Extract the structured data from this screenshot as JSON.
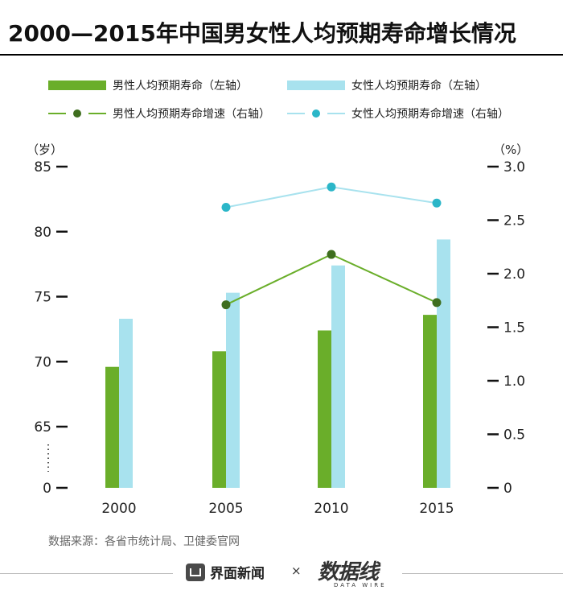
{
  "title": "2000—2015年中国男女性人均预期寿命增长情况",
  "legend": {
    "male_bar": "男性人均预期寿命（左轴）",
    "female_bar": "女性人均预期寿命（左轴）",
    "male_line": "男性人均预期寿命增速（右轴）",
    "female_line": "女性人均预期寿命增速（右轴）"
  },
  "axes": {
    "left_unit": "（岁）",
    "right_unit": "（%）",
    "left_ticks": [
      "85",
      "80",
      "75",
      "70",
      "65",
      "0"
    ],
    "right_ticks": [
      "3.0",
      "2.5",
      "2.0",
      "1.5",
      "1.0",
      "0.5",
      "0"
    ]
  },
  "colors": {
    "male": "#6aae2a",
    "female": "#a8e2ee",
    "male_line": "#6aae2a",
    "male_dot": "#3f6e1f",
    "female_line": "#a8e2ee",
    "female_dot": "#2bb6c8"
  },
  "chart_data": {
    "type": "bar",
    "categories": [
      "2000",
      "2005",
      "2010",
      "2015"
    ],
    "series": [
      {
        "name": "男性人均预期寿命（左轴）",
        "axis": "left",
        "kind": "bar",
        "values": [
          69.6,
          70.8,
          72.4,
          73.6
        ]
      },
      {
        "name": "女性人均预期寿命（左轴）",
        "axis": "left",
        "kind": "bar",
        "values": [
          73.3,
          75.3,
          77.4,
          79.4
        ]
      },
      {
        "name": "男性人均预期寿命增速（右轴）",
        "axis": "right",
        "kind": "line",
        "values": [
          null,
          1.71,
          2.18,
          1.73
        ]
      },
      {
        "name": "女性人均预期寿命增速（右轴）",
        "axis": "right",
        "kind": "line",
        "values": [
          null,
          2.62,
          2.81,
          2.66
        ]
      }
    ],
    "left_axis": {
      "label": "（岁）",
      "ticks": [
        0,
        65,
        70,
        75,
        80,
        85
      ],
      "broken": true
    },
    "right_axis": {
      "label": "（%）",
      "ylim": [
        0,
        3.0
      ]
    },
    "legend": "top",
    "grid": false
  },
  "source": "数据来源：各省市统计局、卫健委官网",
  "footer": {
    "brand": "界面新闻",
    "times": "×",
    "logo": "数据线",
    "logo_sub": "DATA WIRE"
  }
}
